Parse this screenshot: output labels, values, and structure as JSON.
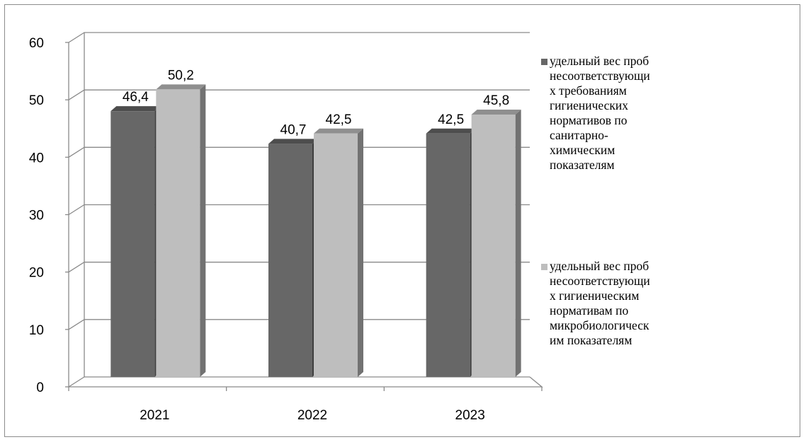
{
  "chart_data": {
    "type": "bar",
    "categories": [
      "2021",
      "2022",
      "2023"
    ],
    "series": [
      {
        "name": "удельный вес проб несоответствующих требованиям гигиенических нормативов по санитарно-химическим показателям",
        "legend_lines": [
          "удельный вес проб",
          "несоответствующи",
          "х требованиям",
          "гигиенических",
          "нормативов по",
          "санитарно-",
          "химическим",
          "показателям"
        ],
        "values": [
          46.4,
          40.7,
          42.5
        ],
        "labels": [
          "46,4",
          "40,7",
          "42,5"
        ],
        "color": "#676767"
      },
      {
        "name": "удельный вес проб несоответствующих гигиеническим нормативам по микробиологическим показателям",
        "legend_lines": [
          "удельный вес проб",
          "несоответствующи",
          "х гигиеническим",
          "нормативам по",
          "микробиологическ",
          "им показателям"
        ],
        "values": [
          50.2,
          42.5,
          45.8
        ],
        "labels": [
          "50,2",
          "42,5",
          "45,8"
        ],
        "color": "#bebebe"
      }
    ],
    "y_ticks": [
      "0",
      "10",
      "20",
      "30",
      "40",
      "50",
      "60"
    ],
    "ylim": [
      0,
      60
    ],
    "grid": true,
    "legend_position": "right",
    "style": "3d-column"
  }
}
